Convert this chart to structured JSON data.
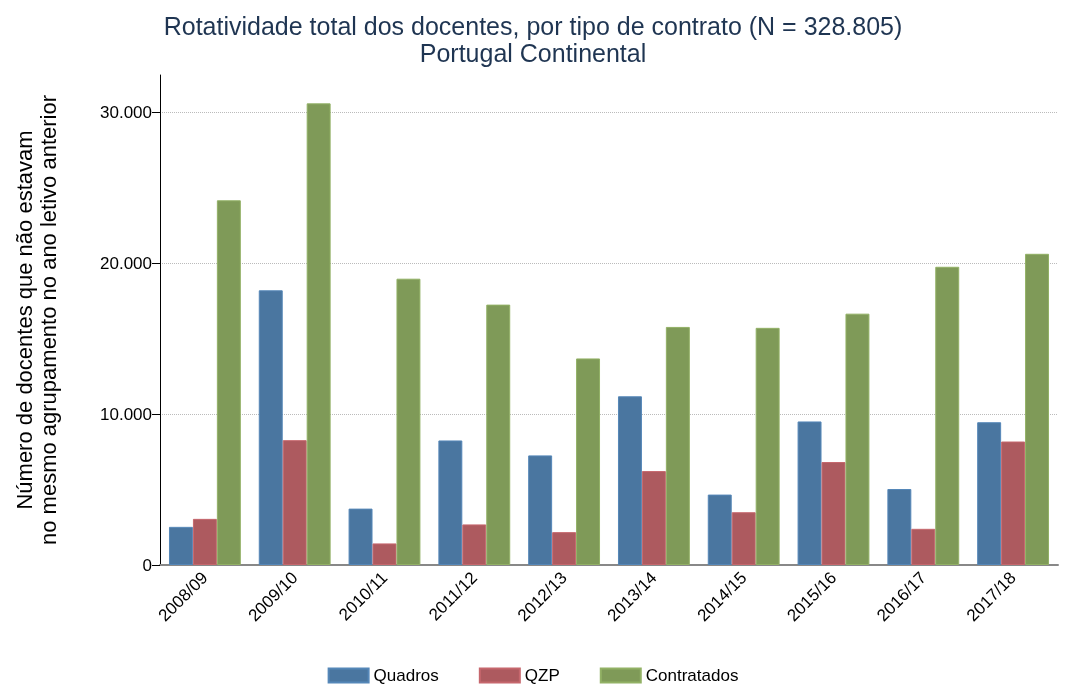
{
  "chart_data": {
    "type": "bar",
    "title": "Rotatividade total dos docentes, por tipo de contrato (N = 328.805)",
    "subtitle": "Portugal Continental",
    "ylabel": "Número de docentes que não estavam\nno mesmo agrupamento no ano letivo anterior",
    "categories": [
      "2008/09",
      "2009/10",
      "2010/11",
      "2011/12",
      "2012/13",
      "2013/14",
      "2014/15",
      "2015/16",
      "2016/17",
      "2017/18"
    ],
    "series": [
      {
        "name": "Quadros",
        "color": "#4a76a0",
        "values": [
          2530,
          18220,
          3740,
          8260,
          7270,
          11190,
          4670,
          9520,
          5040,
          9470
        ]
      },
      {
        "name": "QZP",
        "color": "#ad5a5f",
        "values": [
          3060,
          8280,
          1430,
          2690,
          2180,
          6230,
          3500,
          6830,
          2400,
          8190
        ]
      },
      {
        "name": "Contratados",
        "color": "#7f9a58",
        "values": [
          24190,
          30620,
          18990,
          17270,
          13700,
          15790,
          15730,
          16670,
          19780,
          20640
        ]
      }
    ],
    "ylim": [
      0,
      32500
    ],
    "yticks": [
      {
        "value": 0,
        "label": "0"
      },
      {
        "value": 10000,
        "label": "10.000"
      },
      {
        "value": 20000,
        "label": "20.000"
      },
      {
        "value": 30000,
        "label": "30.000"
      }
    ],
    "grid": "y",
    "legend": "bottom"
  }
}
